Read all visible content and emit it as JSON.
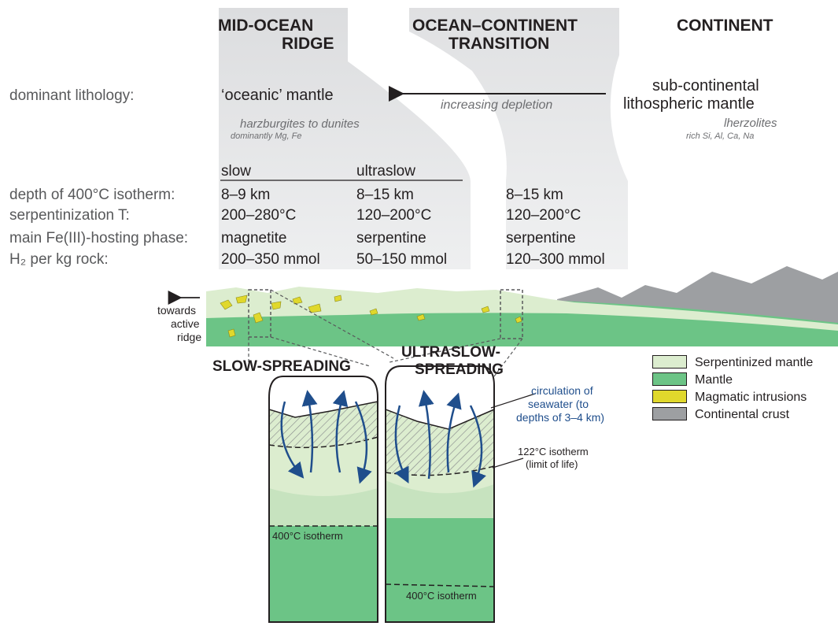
{
  "headers": {
    "ridge": [
      "MID-OCEAN",
      "RIDGE"
    ],
    "transition": [
      "OCEAN–CONTINENT",
      "TRANSITION"
    ],
    "continent": "CONTINENT"
  },
  "lithology": {
    "label": "dominant lithology:",
    "oceanic": "‘oceanic’ mantle",
    "oceanic_sub": "harzburgites to dunites",
    "oceanic_sub2": "dominantly Mg, Fe",
    "arrow_label": "increasing depletion",
    "continental": [
      "sub-continental",
      "lithospheric mantle"
    ],
    "continental_sub": "lherzolites",
    "continental_sub2": "rich Si, Al, Ca, Na"
  },
  "table": {
    "col_slow": "slow",
    "col_ultraslow": "ultraslow",
    "rows": [
      {
        "label": "depth of 400°C isotherm:",
        "slow": "8–9 km",
        "ultraslow": "8–15 km",
        "transition": "8–15 km"
      },
      {
        "label": "serpentinization T:",
        "slow": "200–280°C",
        "ultraslow": "120–200°C",
        "transition": "120–200°C"
      },
      {
        "label": "main Fe(III)-hosting phase:",
        "slow": "magnetite",
        "ultraslow": "serpentine",
        "transition": "serpentine"
      },
      {
        "label": "H₂ per kg rock:",
        "slow": "200–350 mmol",
        "ultraslow": "50–150 mmol",
        "transition": "120–300 mmol"
      }
    ]
  },
  "cross_section": {
    "towards": [
      "towards",
      "active",
      "ridge"
    ]
  },
  "panels": {
    "slow_title": "SLOW-SPREADING",
    "ultraslow_title": [
      "ULTRASLOW-",
      "SPREADING"
    ],
    "isotherm_400": "400°C isotherm",
    "circulation": [
      "circulation of",
      "seawater (to",
      "depths of 3–4 km)"
    ],
    "isotherm_122": [
      "122°C isotherm",
      "(limit of life)"
    ]
  },
  "legend": [
    {
      "label": "Serpentinized mantle",
      "color": "#dcedcf"
    },
    {
      "label": "Mantle",
      "color": "#6cc486"
    },
    {
      "label": "Magmatic intrusions",
      "color": "#e0d82c"
    },
    {
      "label": "Continental crust",
      "color": "#9d9fa2"
    }
  ],
  "colors": {
    "serpentinized": "#dcedcf",
    "mantle": "#6cc486",
    "intrusion": "#e0d82c",
    "crust": "#9d9fa2",
    "arrow_blue": "#1f4e8c",
    "column_gray": "#e6e7e8"
  }
}
